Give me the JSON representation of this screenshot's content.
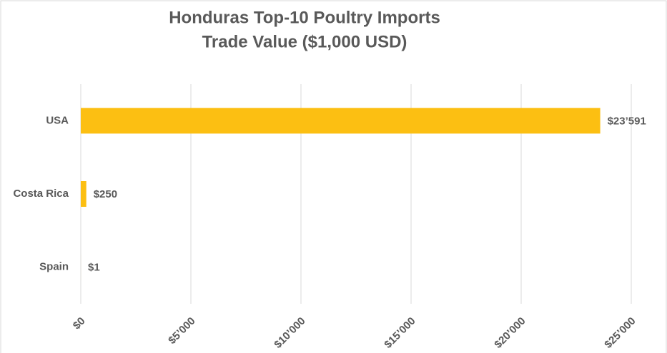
{
  "chart_data": {
    "type": "barh",
    "title": [
      "Honduras Top-10 Poultry Imports",
      "Trade Value ($1,000 USD)"
    ],
    "categories": [
      "USA",
      "Costa Rica",
      "Spain"
    ],
    "values": [
      23591,
      250,
      1
    ],
    "value_labels": [
      "$23’591",
      "$250",
      "$1"
    ],
    "color": "#fcbf12",
    "xlim": [
      0,
      25000
    ],
    "xticks": [
      {
        "value": 0,
        "label": "$0"
      },
      {
        "value": 5000,
        "label": "$5’000"
      },
      {
        "value": 10000,
        "label": "$10’000"
      },
      {
        "value": 15000,
        "label": "$15’000"
      },
      {
        "value": 20000,
        "label": "$20’000"
      },
      {
        "value": 25000,
        "label": "$25’000"
      }
    ],
    "grid": true
  }
}
